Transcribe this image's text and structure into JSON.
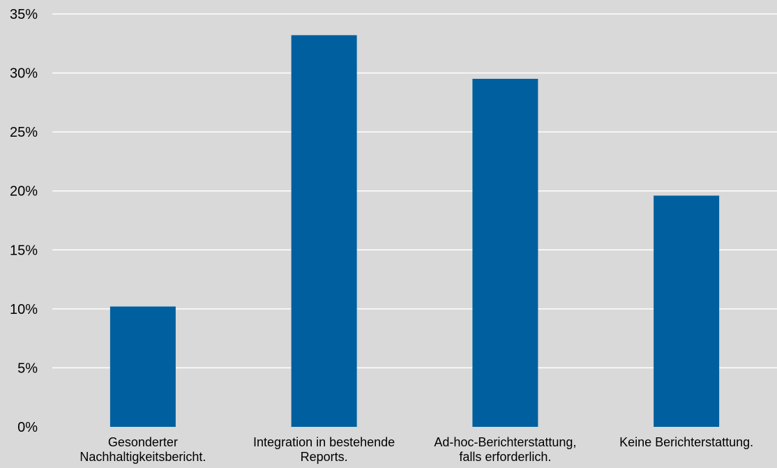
{
  "chart_data": {
    "type": "bar",
    "categories": [
      [
        "Gesonderter",
        "Nachhaltigkeitsbericht."
      ],
      [
        "Integration in bestehende",
        "Reports."
      ],
      [
        "Ad-hoc-Berichterstattung,",
        "falls erforderlich."
      ],
      [
        "Keine Berichterstattung."
      ]
    ],
    "values": [
      10.2,
      33.2,
      29.5,
      19.6
    ],
    "ylim": [
      0,
      35
    ],
    "yticks": [
      "0%",
      "5%",
      "10%",
      "15%",
      "20%",
      "25%",
      "30%",
      "35%"
    ],
    "ytick_values": [
      0,
      5,
      10,
      15,
      20,
      25,
      30,
      35
    ],
    "grid": true,
    "bar_color": "#005f9e",
    "background_color": "#d9d9d9"
  }
}
